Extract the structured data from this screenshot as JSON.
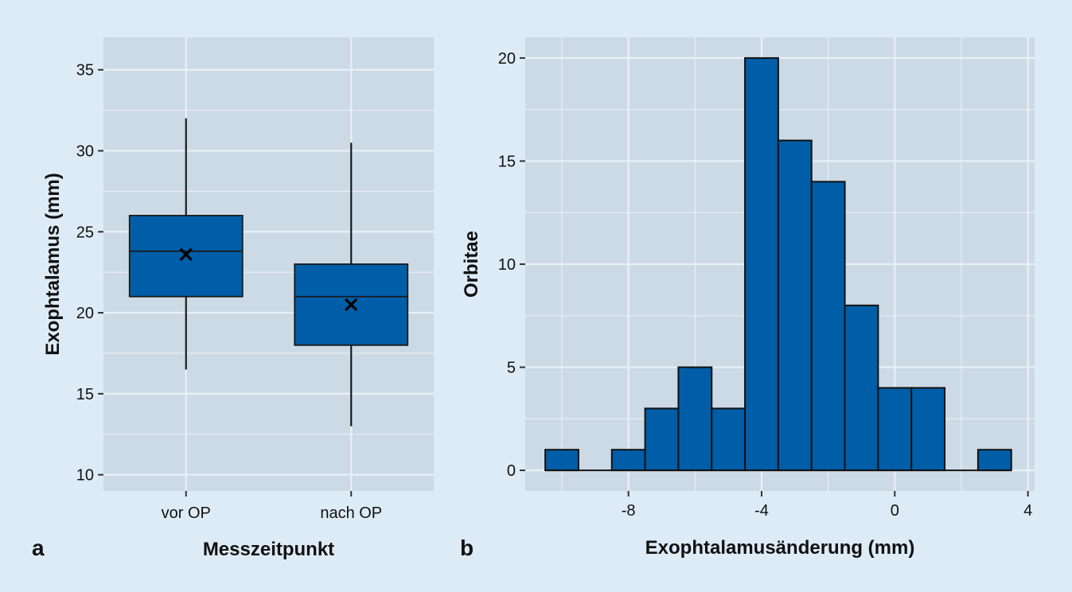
{
  "colors": {
    "background": "#DDEBF7",
    "panel": "#CCDAE6",
    "grid": "#E9F0F7",
    "fill": "#005EA8",
    "stroke": "#1A1A1A"
  },
  "chart_data": [
    {
      "type": "box",
      "panel_label": "a",
      "xlabel": "Messzeitpunkt",
      "ylabel": "Exophtalamus (mm)",
      "categories": [
        "vor OP",
        "nach OP"
      ],
      "ylim": [
        9,
        37
      ],
      "yticks": [
        10,
        15,
        20,
        25,
        30,
        35
      ],
      "grid": true,
      "boxes": [
        {
          "category": "vor OP",
          "min": 16.5,
          "q1": 21,
          "median": 23.8,
          "q3": 26,
          "max": 32,
          "mean": 23.6
        },
        {
          "category": "nach OP",
          "min": 13,
          "q1": 18,
          "median": 21,
          "q3": 23,
          "max": 30.5,
          "mean": 20.5
        }
      ]
    },
    {
      "type": "bar",
      "subtype": "histogram",
      "panel_label": "b",
      "xlabel": "Exophtalamusänderung (mm)",
      "ylabel": "Orbitae",
      "bin_width": 1,
      "bin_centers": [
        -10,
        -9,
        -8,
        -7,
        -6,
        -5,
        -4,
        -3,
        -2,
        -1,
        0,
        1,
        2,
        3
      ],
      "values": [
        1,
        0,
        1,
        3,
        5,
        3,
        20,
        16,
        14,
        8,
        4,
        4,
        0,
        1
      ],
      "xlim": [
        -11.1,
        4.2
      ],
      "ylim": [
        -1,
        21
      ],
      "xticks": [
        -8,
        -4,
        0,
        4
      ],
      "xtick_labels": [
        "-8",
        "-4",
        "0",
        "4"
      ],
      "yticks": [
        0,
        5,
        10,
        15,
        20
      ],
      "grid": true
    }
  ]
}
